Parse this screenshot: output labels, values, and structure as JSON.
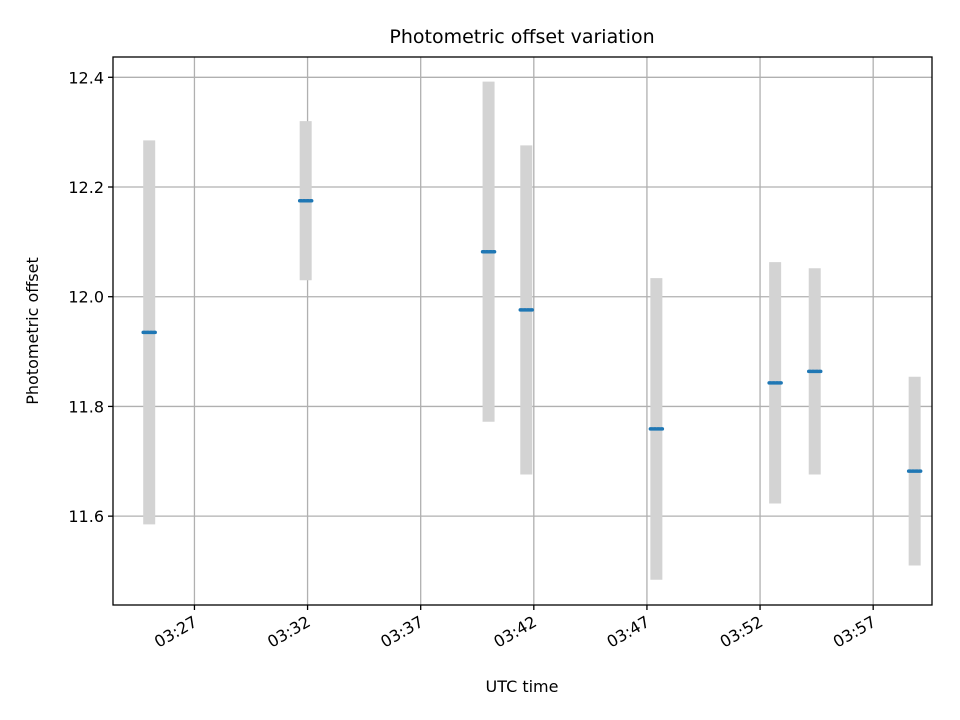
{
  "chart_data": {
    "type": "scatter",
    "title": "Photometric offset variation",
    "xlabel": "UTC time",
    "ylabel": "Photometric offset",
    "x_ticks": [
      "03:27",
      "03:32",
      "03:37",
      "03:42",
      "03:47",
      "03:52",
      "03:57"
    ],
    "y_ticks": [
      "11.6",
      "11.8",
      "12.0",
      "12.2",
      "12.4"
    ],
    "xlim": [
      "03:23:24",
      "03:59:36"
    ],
    "ylim": [
      11.438,
      12.437
    ],
    "grid": true,
    "series": [
      {
        "points": [
          {
            "t": "03:25:00",
            "y": 11.935,
            "err": 0.35
          },
          {
            "t": "03:31:55",
            "y": 12.175,
            "err": 0.145
          },
          {
            "t": "03:40:00",
            "y": 12.082,
            "err": 0.31
          },
          {
            "t": "03:41:40",
            "y": 11.976,
            "err": 0.3
          },
          {
            "t": "03:47:25",
            "y": 11.759,
            "err": 0.275
          },
          {
            "t": "03:52:40",
            "y": 11.843,
            "err": 0.22
          },
          {
            "t": "03:54:25",
            "y": 11.864,
            "err": 0.188
          },
          {
            "t": "03:58:50",
            "y": 11.682,
            "err": 0.172
          }
        ],
        "marker_color": "#1f77b4",
        "errorbar_color": "#d3d3d3"
      }
    ]
  }
}
